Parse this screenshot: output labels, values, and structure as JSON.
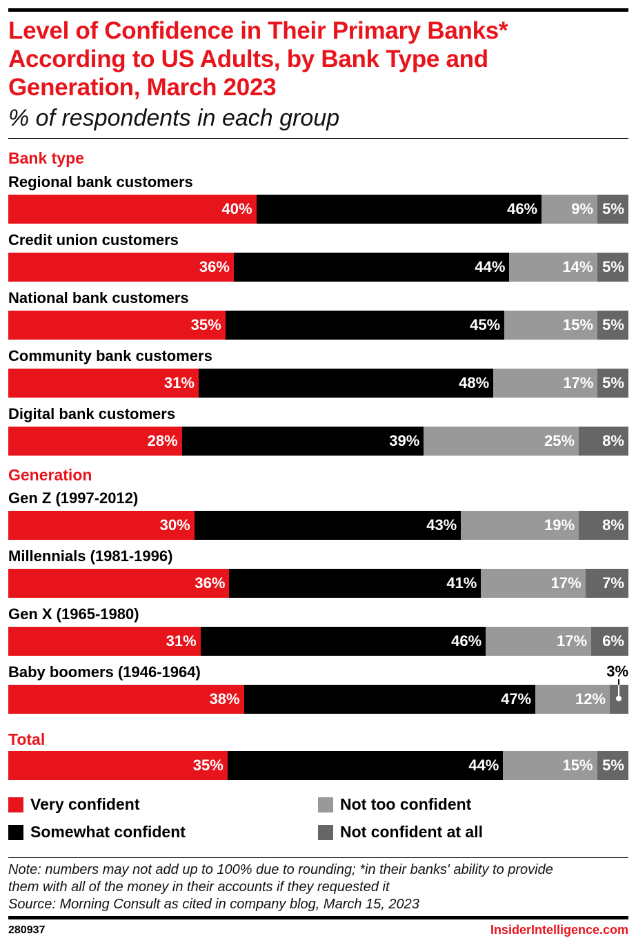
{
  "title": "Level of Confidence in Their Primary Banks* According to US Adults, by Bank Type and Generation, March 2023",
  "subtitle": "% of respondents in each group",
  "chart_data": {
    "type": "bar",
    "orientation": "horizontal",
    "stacked": true,
    "title": "Level of Confidence in Their Primary Banks* According to US Adults, by Bank Type and Generation, March 2023",
    "subtitle": "% of respondents in each group",
    "series_names": [
      "Very confident",
      "Somewhat confident",
      "Not too confident",
      "Not confident at all"
    ],
    "colors": [
      "#e8141c",
      "#000000",
      "#999999",
      "#666666"
    ],
    "groups": [
      {
        "name": "Bank type",
        "rows": [
          {
            "label": "Regional bank customers",
            "values": [
              40,
              46,
              9,
              5
            ]
          },
          {
            "label": "Credit union customers",
            "values": [
              36,
              44,
              14,
              5
            ]
          },
          {
            "label": "National bank customers",
            "values": [
              35,
              45,
              15,
              5
            ]
          },
          {
            "label": "Community bank customers",
            "values": [
              31,
              48,
              17,
              5
            ]
          },
          {
            "label": "Digital bank customers",
            "values": [
              28,
              39,
              25,
              8
            ]
          }
        ]
      },
      {
        "name": "Generation",
        "rows": [
          {
            "label": "Gen Z (1997-2012)",
            "values": [
              30,
              43,
              19,
              8
            ]
          },
          {
            "label": "Millennials (1981-1996)",
            "values": [
              36,
              41,
              17,
              7
            ]
          },
          {
            "label": "Gen X (1965-1980)",
            "values": [
              31,
              46,
              17,
              6
            ]
          },
          {
            "label": "Baby boomers (1946-1964)",
            "values": [
              38,
              47,
              12,
              3
            ]
          }
        ]
      },
      {
        "name": "Total",
        "rows": [
          {
            "label": "",
            "values": [
              35,
              44,
              15,
              5
            ]
          }
        ]
      }
    ],
    "legend": "bottom",
    "value_suffix": "%"
  },
  "legend": [
    {
      "label": "Very confident",
      "color": "#e8141c"
    },
    {
      "label": "Somewhat confident",
      "color": "#000000"
    },
    {
      "label": "Not too confident",
      "color": "#999999"
    },
    {
      "label": "Not confident at all",
      "color": "#666666"
    }
  ],
  "notes": {
    "line1": "Note: numbers may not add up to 100% due to rounding; *in their banks' ability to provide",
    "line2": "them with all of the money in their accounts if they requested it",
    "source": "Source: Morning Consult as cited in company blog, March 15, 2023"
  },
  "footer": {
    "chart_id": "280937",
    "brand": "InsiderIntelligence.com"
  }
}
